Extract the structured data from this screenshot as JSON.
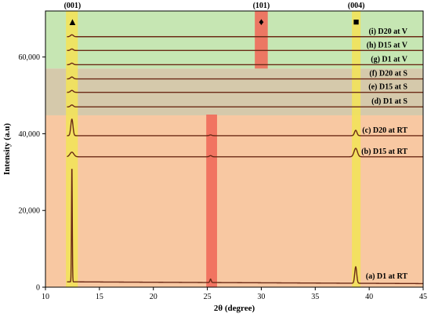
{
  "chart_data": {
    "type": "line",
    "xlabel": "2θ (degree)",
    "ylabel": "Intensity (a.u)",
    "xlim": [
      10,
      45
    ],
    "ylim": [
      0,
      72000
    ],
    "x_ticks": [
      10,
      15,
      20,
      25,
      30,
      35,
      40,
      45
    ],
    "y_ticks": [
      0,
      20000,
      40000,
      60000
    ],
    "y_tick_labels": [
      "0",
      "20,000",
      "40,000",
      "60,000"
    ],
    "regions": [
      {
        "name": "V",
        "y_range": [
          57000,
          72000
        ],
        "color": "#c6e6b3"
      },
      {
        "name": "S",
        "y_range": [
          44800,
          57000
        ],
        "color": "#d5c9ab"
      },
      {
        "name": "RT",
        "y_range": [
          0,
          44800
        ],
        "color": "#f8c8a2"
      }
    ],
    "highlight_bands": [
      {
        "x_range": [
          11.9,
          13.0
        ],
        "color": "#f2e25a"
      },
      {
        "x_range": [
          38.4,
          39.2
        ],
        "color": "#f2e25a"
      },
      {
        "x_range": [
          24.9,
          25.9
        ],
        "color": "#f06a5a",
        "y_top": 45000
      },
      {
        "x_range": [
          29.4,
          30.6
        ],
        "color": "#f06a5a",
        "y_bottom": 57000
      }
    ],
    "peaks": [
      {
        "label": "(001)",
        "x": 12.5,
        "marker": "▲"
      },
      {
        "label": "(101)",
        "x": 30.0,
        "marker": "♦"
      },
      {
        "label": "(004)",
        "x": 38.8,
        "marker": "■"
      }
    ],
    "series": [
      {
        "name": "(a) D1 at RT",
        "baseline": 1400,
        "slope": -14,
        "peaks": [
          {
            "x": 12.45,
            "h": 30500,
            "w": 0.05
          },
          {
            "x": 25.3,
            "h": 900,
            "w": 0.09
          },
          {
            "x": 38.75,
            "h": 4300,
            "w": 0.13
          }
        ]
      },
      {
        "name": "(b) D15 at RT",
        "baseline": 34000,
        "slope": 0,
        "peaks": [
          {
            "x": 12.45,
            "h": 1200,
            "w": 0.25
          },
          {
            "x": 25.3,
            "h": 300,
            "w": 0.15
          },
          {
            "x": 38.75,
            "h": 2200,
            "w": 0.22
          }
        ]
      },
      {
        "name": "(c) D20 at RT",
        "baseline": 39500,
        "slope": 0,
        "peaks": [
          {
            "x": 12.45,
            "h": 4300,
            "w": 0.14
          },
          {
            "x": 25.3,
            "h": 200,
            "w": 0.15
          },
          {
            "x": 38.75,
            "h": 1400,
            "w": 0.16
          }
        ]
      },
      {
        "name": "(d) D1 at S",
        "baseline": 47000,
        "slope": 0,
        "peaks": [
          {
            "x": 12.45,
            "h": 500,
            "w": 0.18
          }
        ]
      },
      {
        "name": "(e) D15 at S",
        "baseline": 50800,
        "slope": 0,
        "peaks": [
          {
            "x": 12.45,
            "h": 500,
            "w": 0.18
          }
        ]
      },
      {
        "name": "(f) D20 at S",
        "baseline": 54300,
        "slope": 0,
        "peaks": [
          {
            "x": 12.45,
            "h": 500,
            "w": 0.18
          }
        ]
      },
      {
        "name": "(g) D1 at V",
        "baseline": 58000,
        "slope": 0,
        "peaks": [
          {
            "x": 12.45,
            "h": 400,
            "w": 0.18
          }
        ]
      },
      {
        "name": "(h) D15 at V",
        "baseline": 61700,
        "slope": 0,
        "peaks": [
          {
            "x": 12.45,
            "h": 400,
            "w": 0.18
          }
        ]
      },
      {
        "name": "(i) D20 at V",
        "baseline": 65300,
        "slope": 0,
        "peaks": [
          {
            "x": 12.45,
            "h": 500,
            "w": 0.18
          }
        ]
      }
    ],
    "line_color": "#6b2a16",
    "grid": false,
    "legend": "inline-right"
  }
}
